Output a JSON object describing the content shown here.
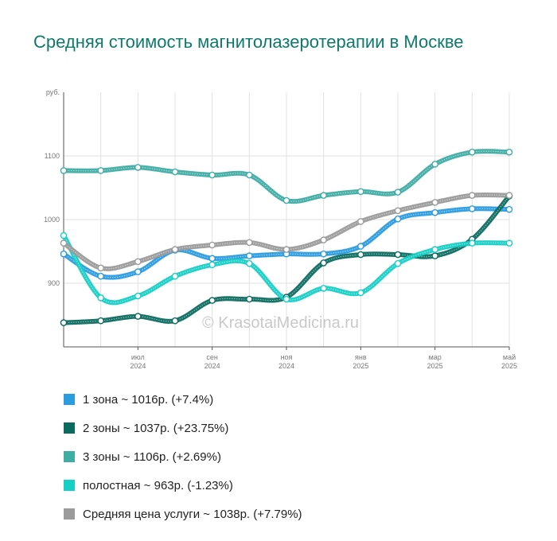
{
  "chart_data": {
    "type": "line",
    "title": "Средняя стоимость магнитолазеротерапии в Москве",
    "ylabel": "руб.",
    "ylim": [
      800,
      1200
    ],
    "yticks": [
      900,
      1000,
      1100
    ],
    "x": [
      "2024-05",
      "2024-06",
      "2024-07",
      "2024-08",
      "2024-09",
      "2024-10",
      "2024-11",
      "2024-12",
      "2025-01",
      "2025-02",
      "2025-03",
      "2025-04",
      "2025-05"
    ],
    "xtick_labels": [
      {
        "month": "июл",
        "year": "2024"
      },
      {
        "month": "сен",
        "year": "2024"
      },
      {
        "month": "ноя",
        "year": "2024"
      },
      {
        "month": "янв",
        "year": "2025"
      },
      {
        "month": "мар",
        "year": "2025"
      },
      {
        "month": "май",
        "year": "2025"
      }
    ],
    "watermark": "© KrasotaiMedicina.ru",
    "grid": true,
    "legend_position": "bottom",
    "series": [
      {
        "name": "1 зона",
        "summary": "1 зона ~ 1016р. (+7.4%)",
        "color": "#2b9ce0",
        "values": [
          946,
          911,
          918,
          952,
          939,
          943,
          946,
          946,
          958,
          1001,
          1011,
          1017,
          1016
        ]
      },
      {
        "name": "2 зоны",
        "summary": "2 зоны ~ 1037р. (+23.75%)",
        "color": "#0c6b60",
        "values": [
          838,
          841,
          848,
          841,
          873,
          875,
          878,
          932,
          945,
          945,
          943,
          969,
          1037
        ]
      },
      {
        "name": "3 зоны",
        "summary": "3 зоны ~ 1106р. (+2.69%)",
        "color": "#3fada4",
        "values": [
          1077,
          1077,
          1082,
          1075,
          1070,
          1070,
          1030,
          1038,
          1044,
          1043,
          1087,
          1106,
          1106
        ]
      },
      {
        "name": "полостная",
        "summary": "полостная ~ 963р. (-1.23%)",
        "color": "#16cfc5",
        "values": [
          975,
          877,
          880,
          911,
          929,
          931,
          875,
          892,
          885,
          931,
          953,
          963,
          963
        ]
      },
      {
        "name": "Средняя цена услуги",
        "summary": "Средняя цена услуги ~ 1038р. (+7.79%)",
        "color": "#9b9b9b",
        "values": [
          963,
          924,
          934,
          953,
          960,
          964,
          953,
          968,
          997,
          1014,
          1027,
          1038,
          1038
        ]
      }
    ]
  }
}
